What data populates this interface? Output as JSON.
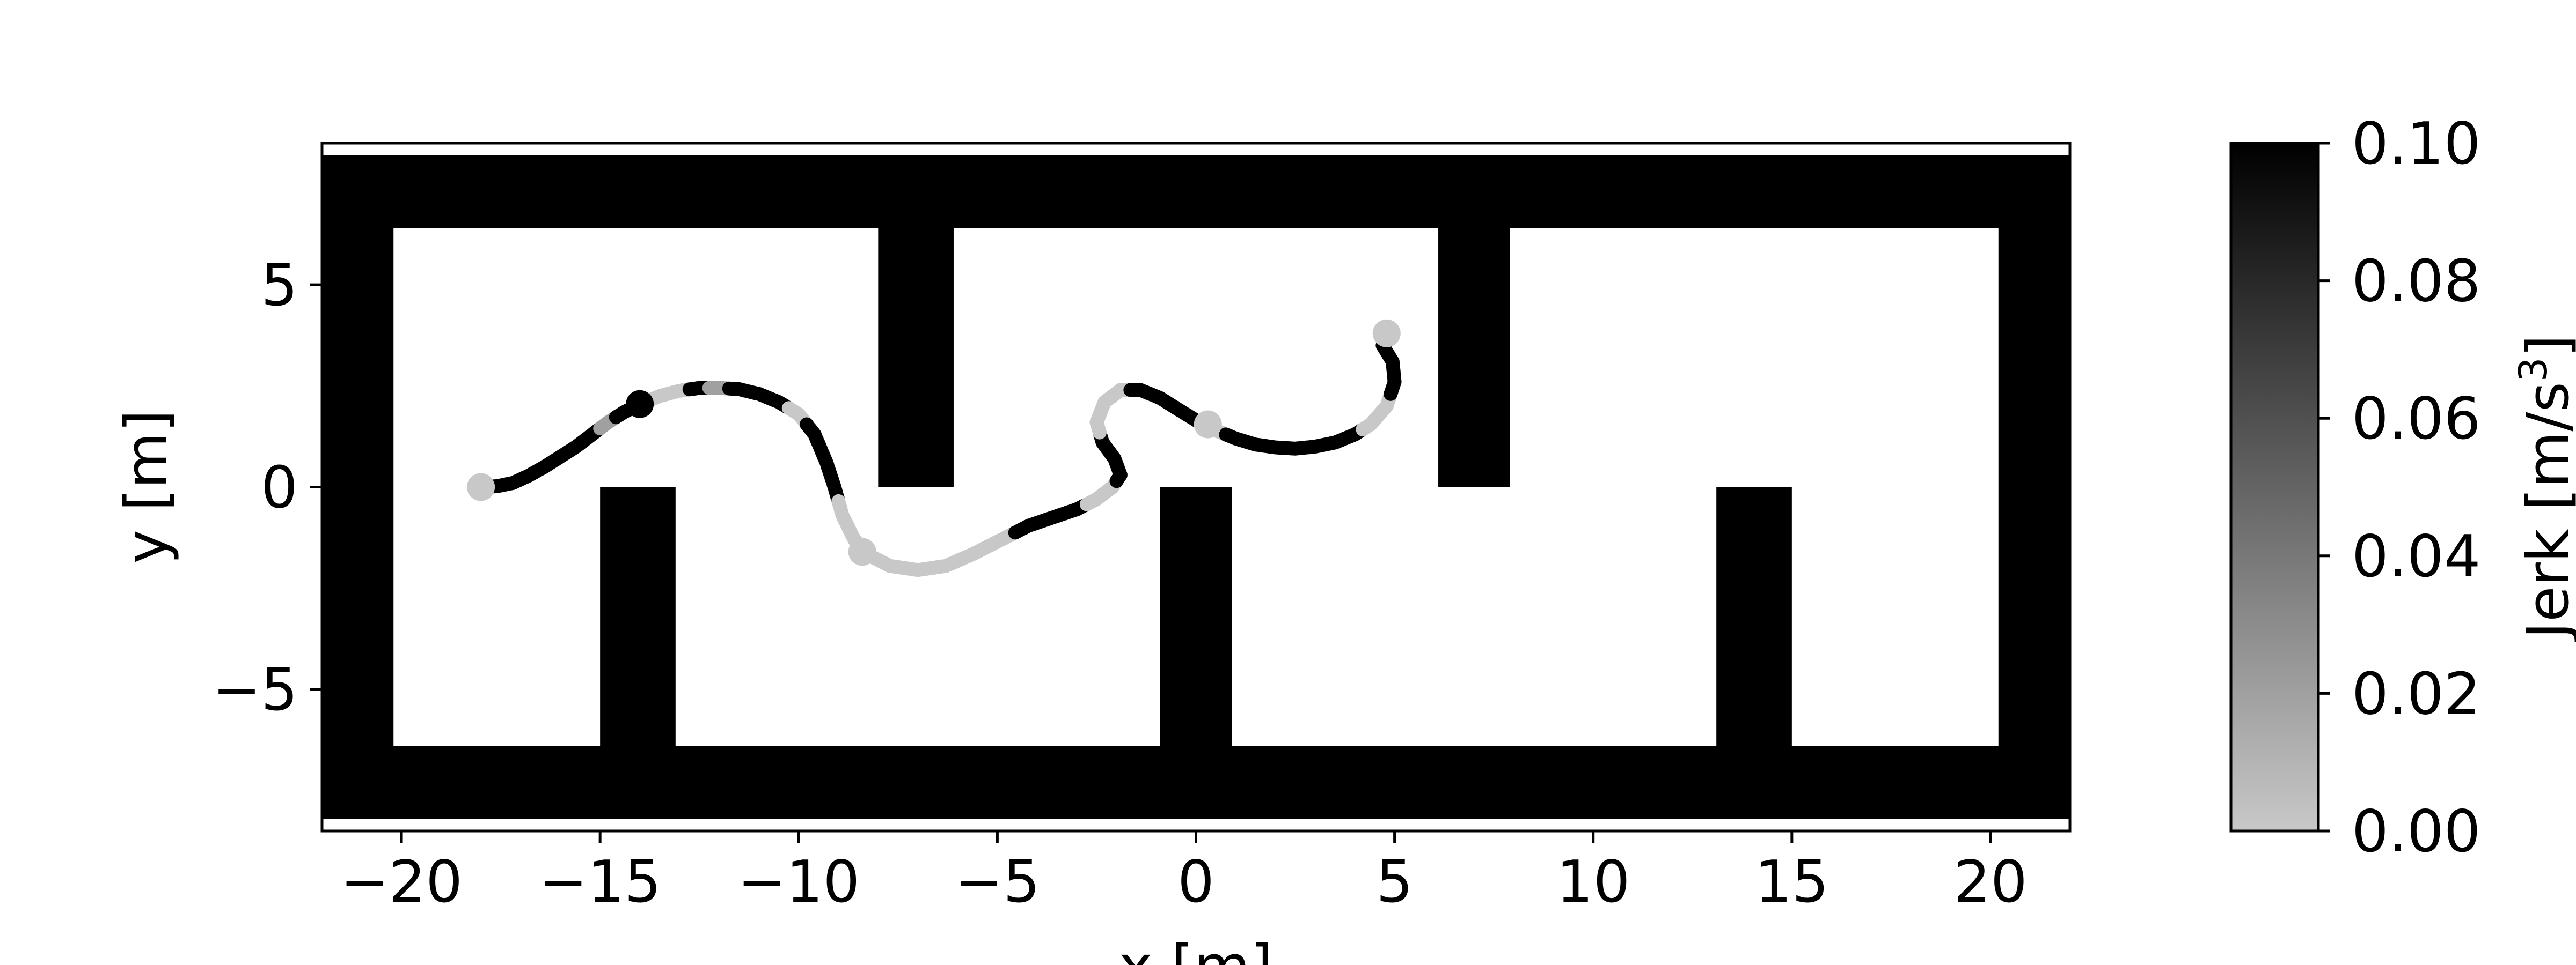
{
  "chart_data": {
    "type": "scatter",
    "xlabel": "x [m]",
    "ylabel": "y [m]",
    "xlim": [
      -22,
      22
    ],
    "ylim": [
      -8.5,
      8.5
    ],
    "x_ticks": [
      -20,
      -15,
      -10,
      -5,
      0,
      5,
      10,
      15,
      20
    ],
    "x_tick_labels": [
      "−20",
      "−15",
      "−10",
      "−5",
      "0",
      "5",
      "10",
      "15",
      "20"
    ],
    "y_ticks": [
      -5,
      0,
      5
    ],
    "y_tick_labels": [
      "−5",
      "0",
      "5"
    ],
    "grid": false,
    "obstacles": [
      {
        "x0": -22,
        "x1": 22,
        "y0": 6.4,
        "y1": 8.2
      },
      {
        "x0": -22,
        "x1": 22,
        "y0": -8.2,
        "y1": -6.4
      },
      {
        "x0": -22,
        "x1": -20.2,
        "y0": -8.2,
        "y1": 8.2
      },
      {
        "x0": 20.2,
        "x1": 22,
        "y0": -8.2,
        "y1": 8.2
      },
      {
        "x0": -8.0,
        "x1": -6.1,
        "y0": 0,
        "y1": 6.4
      },
      {
        "x0": 6.1,
        "x1": 7.9,
        "y0": 0,
        "y1": 6.4
      },
      {
        "x0": -15.0,
        "x1": -13.1,
        "y0": -6.4,
        "y1": 0
      },
      {
        "x0": -0.9,
        "x1": 0.9,
        "y0": -6.4,
        "y1": 0
      },
      {
        "x0": 13.1,
        "x1": 15.0,
        "y0": -6.4,
        "y1": 0
      }
    ],
    "trajectory": {
      "points": [
        {
          "x": -18.0,
          "y": 0.0,
          "jerk": 0.0
        },
        {
          "x": -17.6,
          "y": 0.02,
          "jerk": 0.1
        },
        {
          "x": -17.2,
          "y": 0.1,
          "jerk": 0.1
        },
        {
          "x": -16.8,
          "y": 0.28,
          "jerk": 0.1
        },
        {
          "x": -16.4,
          "y": 0.5,
          "jerk": 0.1
        },
        {
          "x": -16.0,
          "y": 0.75,
          "jerk": 0.1
        },
        {
          "x": -15.6,
          "y": 1.0,
          "jerk": 0.1
        },
        {
          "x": -15.2,
          "y": 1.3,
          "jerk": 0.1
        },
        {
          "x": -14.8,
          "y": 1.6,
          "jerk": 0.02
        },
        {
          "x": -14.4,
          "y": 1.85,
          "jerk": 0.1
        },
        {
          "x": -14.0,
          "y": 2.05,
          "jerk": 0.1
        },
        {
          "x": -13.5,
          "y": 2.25,
          "jerk": 0.0
        },
        {
          "x": -13.0,
          "y": 2.38,
          "jerk": 0.0
        },
        {
          "x": -12.5,
          "y": 2.45,
          "jerk": 0.1
        },
        {
          "x": -12.0,
          "y": 2.45,
          "jerk": 0.02
        },
        {
          "x": -11.5,
          "y": 2.42,
          "jerk": 0.1
        },
        {
          "x": -11.0,
          "y": 2.3,
          "jerk": 0.1
        },
        {
          "x": -10.5,
          "y": 2.1,
          "jerk": 0.1
        },
        {
          "x": -10.0,
          "y": 1.8,
          "jerk": 0.0
        },
        {
          "x": -9.6,
          "y": 1.3,
          "jerk": 0.1
        },
        {
          "x": -9.3,
          "y": 0.6,
          "jerk": 0.1
        },
        {
          "x": -9.1,
          "y": 0.0,
          "jerk": 0.1
        },
        {
          "x": -8.9,
          "y": -0.7,
          "jerk": 0.0
        },
        {
          "x": -8.6,
          "y": -1.3,
          "jerk": 0.0
        },
        {
          "x": -8.2,
          "y": -1.7,
          "jerk": 0.0
        },
        {
          "x": -7.7,
          "y": -1.95,
          "jerk": 0.0
        },
        {
          "x": -7.0,
          "y": -2.05,
          "jerk": 0.0
        },
        {
          "x": -6.3,
          "y": -1.95,
          "jerk": 0.0
        },
        {
          "x": -5.6,
          "y": -1.65,
          "jerk": 0.0
        },
        {
          "x": -4.9,
          "y": -1.3,
          "jerk": 0.0
        },
        {
          "x": -4.2,
          "y": -0.95,
          "jerk": 0.1
        },
        {
          "x": -3.6,
          "y": -0.75,
          "jerk": 0.1
        },
        {
          "x": -3.0,
          "y": -0.55,
          "jerk": 0.1
        },
        {
          "x": -2.5,
          "y": -0.3,
          "jerk": 0.0
        },
        {
          "x": -2.1,
          "y": 0.0,
          "jerk": 0.0
        },
        {
          "x": -1.9,
          "y": 0.3,
          "jerk": 0.1
        },
        {
          "x": -2.05,
          "y": 0.7,
          "jerk": 0.1
        },
        {
          "x": -2.35,
          "y": 1.1,
          "jerk": 0.1
        },
        {
          "x": -2.5,
          "y": 1.6,
          "jerk": 0.0
        },
        {
          "x": -2.3,
          "y": 2.1,
          "jerk": 0.0
        },
        {
          "x": -1.9,
          "y": 2.4,
          "jerk": 0.0
        },
        {
          "x": -1.4,
          "y": 2.4,
          "jerk": 0.1
        },
        {
          "x": -0.9,
          "y": 2.2,
          "jerk": 0.1
        },
        {
          "x": -0.5,
          "y": 1.95,
          "jerk": 0.1
        },
        {
          "x": 0.0,
          "y": 1.65,
          "jerk": 0.1
        },
        {
          "x": 0.5,
          "y": 1.4,
          "jerk": 0.0
        },
        {
          "x": 1.0,
          "y": 1.2,
          "jerk": 0.1
        },
        {
          "x": 1.5,
          "y": 1.05,
          "jerk": 0.1
        },
        {
          "x": 2.0,
          "y": 0.98,
          "jerk": 0.1
        },
        {
          "x": 2.5,
          "y": 0.95,
          "jerk": 0.1
        },
        {
          "x": 3.0,
          "y": 1.0,
          "jerk": 0.1
        },
        {
          "x": 3.5,
          "y": 1.1,
          "jerk": 0.1
        },
        {
          "x": 4.0,
          "y": 1.3,
          "jerk": 0.1
        },
        {
          "x": 4.4,
          "y": 1.55,
          "jerk": 0.0
        },
        {
          "x": 4.8,
          "y": 2.0,
          "jerk": 0.0
        },
        {
          "x": 5.0,
          "y": 2.6,
          "jerk": 0.1
        },
        {
          "x": 4.95,
          "y": 3.1,
          "jerk": 0.1
        },
        {
          "x": 4.7,
          "y": 3.5,
          "jerk": 0.1
        },
        {
          "x": 4.8,
          "y": 3.8,
          "jerk": 0.0
        }
      ],
      "large_markers": [
        {
          "x": -18.0,
          "y": 0.0,
          "jerk": 0.0
        },
        {
          "x": -14.0,
          "y": 2.05,
          "jerk": 0.1
        },
        {
          "x": -8.4,
          "y": -1.6,
          "jerk": 0.0
        },
        {
          "x": 0.3,
          "y": 1.55,
          "jerk": 0.0
        },
        {
          "x": 4.8,
          "y": 3.8,
          "jerk": 0.0
        }
      ]
    },
    "colorbar": {
      "label_main": "Jerk [m/s",
      "label_sup": "3",
      "label_end": "]",
      "min": 0.0,
      "max": 0.1,
      "ticks": [
        0.0,
        0.02,
        0.04,
        0.06,
        0.08,
        0.1
      ],
      "tick_labels": [
        "0.00",
        "0.02",
        "0.04",
        "0.06",
        "0.08",
        "0.10"
      ],
      "color_low": "#c8c8c8",
      "color_high": "#000000"
    }
  }
}
